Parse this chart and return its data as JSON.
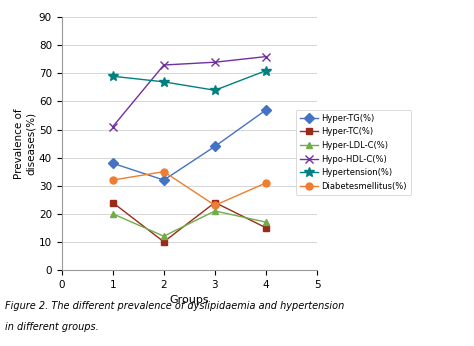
{
  "x": [
    1,
    2,
    3,
    4
  ],
  "series": {
    "Hyper-TG(%)": {
      "values": [
        38,
        32,
        44,
        57
      ],
      "color": "#4472c4",
      "marker": "D",
      "linestyle": "-"
    },
    "Hyper-TC(%)": {
      "values": [
        24,
        10,
        24,
        15
      ],
      "color": "#9c2a1a",
      "marker": "s",
      "linestyle": "-"
    },
    "Hyper-LDL-C(%)": {
      "values": [
        20,
        12,
        21,
        17
      ],
      "color": "#70ad47",
      "marker": "^",
      "linestyle": "-"
    },
    "Hypo-HDL-C(%)": {
      "values": [
        51,
        73,
        74,
        76
      ],
      "color": "#7030a0",
      "marker": "x",
      "linestyle": "-"
    },
    "Hypertension(%)": {
      "values": [
        69,
        67,
        64,
        71
      ],
      "color": "#008080",
      "marker": "*",
      "linestyle": "-"
    },
    "Diabetesmellitus(%)": {
      "values": [
        32,
        35,
        23,
        31
      ],
      "color": "#ed7d31",
      "marker": "o",
      "linestyle": "-"
    }
  },
  "xlim": [
    0,
    5
  ],
  "ylim": [
    0,
    90
  ],
  "yticks": [
    0,
    10,
    20,
    30,
    40,
    50,
    60,
    70,
    80,
    90
  ],
  "xticks": [
    0,
    1,
    2,
    3,
    4,
    5
  ],
  "xlabel": "Groups",
  "ylabel": "Prevalence of\ndiseases(%)",
  "caption_line1": "Figure 2. The different prevalence of dyslipidaemia and hypertension",
  "caption_line2": "in different groups.",
  "background_color": "#ffffff",
  "grid_color": "#d0d0d0"
}
